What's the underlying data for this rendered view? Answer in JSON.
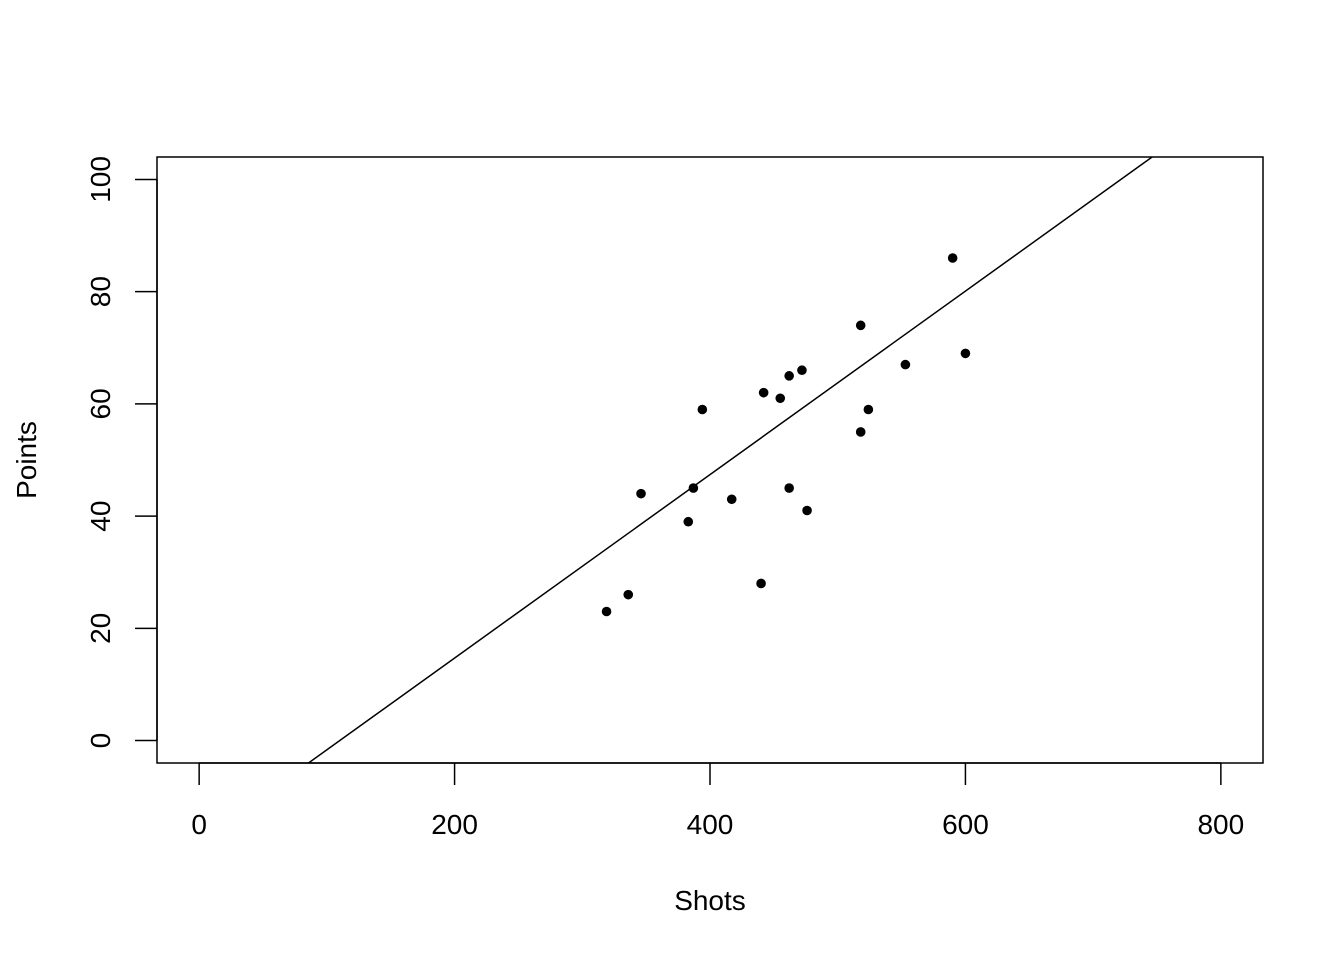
{
  "chart_data": {
    "type": "scatter",
    "title": "",
    "xlabel": "Shots",
    "ylabel": "Points",
    "xlim": [
      -33,
      833
    ],
    "ylim": [
      -4,
      104
    ],
    "x_ticks": [
      0,
      200,
      400,
      600,
      800
    ],
    "y_ticks": [
      0,
      20,
      40,
      60,
      80,
      100
    ],
    "x_tick_labels": [
      "0",
      "200",
      "400",
      "600",
      "800"
    ],
    "y_tick_labels": [
      "0",
      "20",
      "40",
      "60",
      "80",
      "100"
    ],
    "grid": false,
    "legend": "none",
    "points": [
      {
        "x": 319,
        "y": 23
      },
      {
        "x": 336,
        "y": 26
      },
      {
        "x": 346,
        "y": 44
      },
      {
        "x": 383,
        "y": 39
      },
      {
        "x": 387,
        "y": 45
      },
      {
        "x": 394,
        "y": 59
      },
      {
        "x": 417,
        "y": 43
      },
      {
        "x": 440,
        "y": 28
      },
      {
        "x": 442,
        "y": 62
      },
      {
        "x": 455,
        "y": 61
      },
      {
        "x": 462,
        "y": 65
      },
      {
        "x": 462,
        "y": 45
      },
      {
        "x": 472,
        "y": 66
      },
      {
        "x": 476,
        "y": 41
      },
      {
        "x": 518,
        "y": 74
      },
      {
        "x": 518,
        "y": 55
      },
      {
        "x": 524,
        "y": 59
      },
      {
        "x": 553,
        "y": 67
      },
      {
        "x": 590,
        "y": 86
      },
      {
        "x": 600,
        "y": 69
      }
    ],
    "regression_line": {
      "slope": 0.1635,
      "intercept": -18.0
    },
    "colors": {
      "points": "#000000",
      "line": "#000000",
      "axes": "#000000",
      "background": "#ffffff"
    }
  }
}
